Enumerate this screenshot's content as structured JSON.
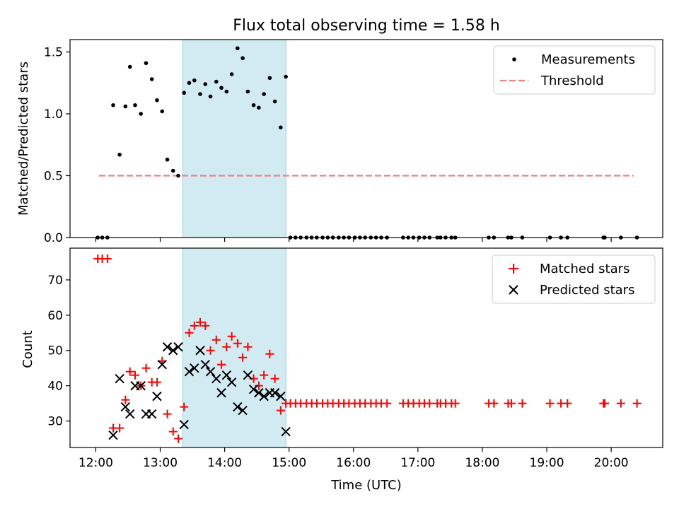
{
  "title": "Flux total observing time = 1.58 h",
  "colors": {
    "measurement": "#000000",
    "threshold": "#f08080",
    "matched": "#ff0000",
    "predicted": "#000000",
    "span_fill": "#add8e6"
  },
  "chart_data": [
    {
      "type": "scatter",
      "ylabel": "Matched/Predicted stars",
      "xlim": [
        11.6,
        20.8
      ],
      "ylim": [
        0.0,
        1.6
      ],
      "yticks": [
        0.0,
        0.5,
        1.0,
        1.5
      ],
      "ytick_labels": [
        "0.0",
        "0.5",
        "1.0",
        "1.5"
      ],
      "highlight_span": [
        13.35,
        14.95
      ],
      "legend": {
        "position": "top-right",
        "entries": [
          "Measurements",
          "Threshold"
        ]
      },
      "threshold": {
        "name": "Threshold",
        "value": 0.5,
        "x_range": [
          12.05,
          20.35
        ]
      },
      "series": [
        {
          "name": "Measurements",
          "points": [
            [
              12.03,
              0.0
            ],
            [
              12.1,
              0.0
            ],
            [
              12.18,
              0.0
            ],
            [
              12.27,
              1.07
            ],
            [
              12.37,
              0.67
            ],
            [
              12.46,
              1.06
            ],
            [
              12.53,
              1.38
            ],
            [
              12.61,
              1.07
            ],
            [
              12.7,
              1.0
            ],
            [
              12.78,
              1.41
            ],
            [
              12.87,
              1.28
            ],
            [
              12.95,
              1.11
            ],
            [
              13.03,
              1.02
            ],
            [
              13.11,
              0.63
            ],
            [
              13.2,
              0.54
            ],
            [
              13.28,
              0.5
            ],
            [
              13.37,
              1.17
            ],
            [
              13.45,
              1.25
            ],
            [
              13.53,
              1.27
            ],
            [
              13.62,
              1.16
            ],
            [
              13.7,
              1.24
            ],
            [
              13.78,
              1.14
            ],
            [
              13.87,
              1.26
            ],
            [
              13.95,
              1.21
            ],
            [
              14.03,
              1.18
            ],
            [
              14.11,
              1.32
            ],
            [
              14.2,
              1.53
            ],
            [
              14.28,
              1.45
            ],
            [
              14.36,
              1.18
            ],
            [
              14.45,
              1.07
            ],
            [
              14.53,
              1.05
            ],
            [
              14.61,
              1.16
            ],
            [
              14.7,
              1.29
            ],
            [
              14.78,
              1.1
            ],
            [
              14.87,
              0.89
            ],
            [
              14.95,
              1.3
            ],
            [
              15.02,
              0.0
            ],
            [
              15.1,
              0.0
            ],
            [
              15.18,
              0.0
            ],
            [
              15.27,
              0.0
            ],
            [
              15.35,
              0.0
            ],
            [
              15.43,
              0.0
            ],
            [
              15.52,
              0.0
            ],
            [
              15.6,
              0.0
            ],
            [
              15.68,
              0.0
            ],
            [
              15.77,
              0.0
            ],
            [
              15.85,
              0.0
            ],
            [
              15.93,
              0.0
            ],
            [
              16.02,
              0.0
            ],
            [
              16.1,
              0.0
            ],
            [
              16.18,
              0.0
            ],
            [
              16.27,
              0.0
            ],
            [
              16.35,
              0.0
            ],
            [
              16.43,
              0.0
            ],
            [
              16.52,
              0.0
            ],
            [
              16.77,
              0.0
            ],
            [
              16.85,
              0.0
            ],
            [
              16.93,
              0.0
            ],
            [
              17.02,
              0.0
            ],
            [
              17.1,
              0.0
            ],
            [
              17.18,
              0.0
            ],
            [
              17.3,
              0.0
            ],
            [
              17.35,
              0.0
            ],
            [
              17.43,
              0.0
            ],
            [
              17.52,
              0.0
            ],
            [
              17.58,
              0.0
            ],
            [
              18.1,
              0.0
            ],
            [
              18.18,
              0.0
            ],
            [
              18.4,
              0.0
            ],
            [
              18.45,
              0.0
            ],
            [
              18.62,
              0.0
            ],
            [
              19.05,
              0.0
            ],
            [
              19.22,
              0.0
            ],
            [
              19.32,
              0.0
            ],
            [
              19.88,
              0.0
            ],
            [
              19.9,
              0.0
            ],
            [
              20.15,
              0.0
            ],
            [
              20.4,
              0.0
            ]
          ]
        }
      ]
    },
    {
      "type": "scatter",
      "xlabel": "Time (UTC)",
      "ylabel": "Count",
      "xlim": [
        11.6,
        20.8
      ],
      "ylim": [
        22.5,
        79
      ],
      "yticks": [
        30,
        40,
        50,
        60,
        70
      ],
      "ytick_labels": [
        "30",
        "40",
        "50",
        "60",
        "70"
      ],
      "xticks": [
        12,
        13,
        14,
        15,
        16,
        17,
        18,
        19,
        20
      ],
      "xtick_labels": [
        "12:00",
        "13:00",
        "14:00",
        "15:00",
        "16:00",
        "17:00",
        "18:00",
        "19:00",
        "20:00"
      ],
      "highlight_span": [
        13.35,
        14.95
      ],
      "legend": {
        "position": "top-right",
        "entries": [
          "Matched stars",
          "Predicted stars"
        ]
      },
      "series": [
        {
          "name": "Matched stars",
          "marker": "+",
          "points": [
            [
              12.03,
              76
            ],
            [
              12.1,
              76
            ],
            [
              12.18,
              76
            ],
            [
              12.27,
              28
            ],
            [
              12.37,
              28
            ],
            [
              12.46,
              36
            ],
            [
              12.53,
              44
            ],
            [
              12.61,
              43
            ],
            [
              12.7,
              40
            ],
            [
              12.78,
              45
            ],
            [
              12.87,
              41
            ],
            [
              12.95,
              41
            ],
            [
              13.03,
              47
            ],
            [
              13.11,
              32
            ],
            [
              13.2,
              27
            ],
            [
              13.28,
              25
            ],
            [
              13.37,
              34
            ],
            [
              13.45,
              55
            ],
            [
              13.53,
              57
            ],
            [
              13.62,
              58
            ],
            [
              13.7,
              57
            ],
            [
              13.78,
              50
            ],
            [
              13.87,
              53
            ],
            [
              13.95,
              46
            ],
            [
              14.03,
              51
            ],
            [
              14.11,
              54
            ],
            [
              14.2,
              52
            ],
            [
              14.28,
              48
            ],
            [
              14.36,
              51
            ],
            [
              14.45,
              42
            ],
            [
              14.53,
              40
            ],
            [
              14.61,
              43
            ],
            [
              14.7,
              49
            ],
            [
              14.78,
              42
            ],
            [
              14.87,
              33
            ],
            [
              14.95,
              35
            ],
            [
              15.02,
              35
            ],
            [
              15.1,
              35
            ],
            [
              15.18,
              35
            ],
            [
              15.27,
              35
            ],
            [
              15.35,
              35
            ],
            [
              15.43,
              35
            ],
            [
              15.52,
              35
            ],
            [
              15.6,
              35
            ],
            [
              15.68,
              35
            ],
            [
              15.77,
              35
            ],
            [
              15.85,
              35
            ],
            [
              15.93,
              35
            ],
            [
              16.02,
              35
            ],
            [
              16.1,
              35
            ],
            [
              16.18,
              35
            ],
            [
              16.27,
              35
            ],
            [
              16.35,
              35
            ],
            [
              16.43,
              35
            ],
            [
              16.52,
              35
            ],
            [
              16.77,
              35
            ],
            [
              16.85,
              35
            ],
            [
              16.93,
              35
            ],
            [
              17.02,
              35
            ],
            [
              17.1,
              35
            ],
            [
              17.18,
              35
            ],
            [
              17.3,
              35
            ],
            [
              17.35,
              35
            ],
            [
              17.43,
              35
            ],
            [
              17.52,
              35
            ],
            [
              17.58,
              35
            ],
            [
              18.1,
              35
            ],
            [
              18.18,
              35
            ],
            [
              18.4,
              35
            ],
            [
              18.45,
              35
            ],
            [
              18.62,
              35
            ],
            [
              19.05,
              35
            ],
            [
              19.22,
              35
            ],
            [
              19.32,
              35
            ],
            [
              19.88,
              35
            ],
            [
              19.9,
              35
            ],
            [
              20.15,
              35
            ],
            [
              20.4,
              35
            ]
          ]
        },
        {
          "name": "Predicted stars",
          "marker": "x",
          "points": [
            [
              12.27,
              26
            ],
            [
              12.37,
              42
            ],
            [
              12.46,
              34
            ],
            [
              12.53,
              32
            ],
            [
              12.61,
              40
            ],
            [
              12.7,
              40
            ],
            [
              12.78,
              32
            ],
            [
              12.87,
              32
            ],
            [
              12.95,
              37
            ],
            [
              13.03,
              46
            ],
            [
              13.11,
              51
            ],
            [
              13.2,
              50
            ],
            [
              13.28,
              51
            ],
            [
              13.37,
              29
            ],
            [
              13.45,
              44
            ],
            [
              13.53,
              45
            ],
            [
              13.62,
              50
            ],
            [
              13.7,
              46
            ],
            [
              13.78,
              44
            ],
            [
              13.87,
              42
            ],
            [
              13.95,
              38
            ],
            [
              14.03,
              43
            ],
            [
              14.11,
              41
            ],
            [
              14.2,
              34
            ],
            [
              14.28,
              33
            ],
            [
              14.36,
              43
            ],
            [
              14.45,
              39
            ],
            [
              14.53,
              38
            ],
            [
              14.61,
              37
            ],
            [
              14.7,
              38
            ],
            [
              14.78,
              38
            ],
            [
              14.87,
              37
            ],
            [
              14.95,
              27
            ]
          ]
        }
      ]
    }
  ]
}
